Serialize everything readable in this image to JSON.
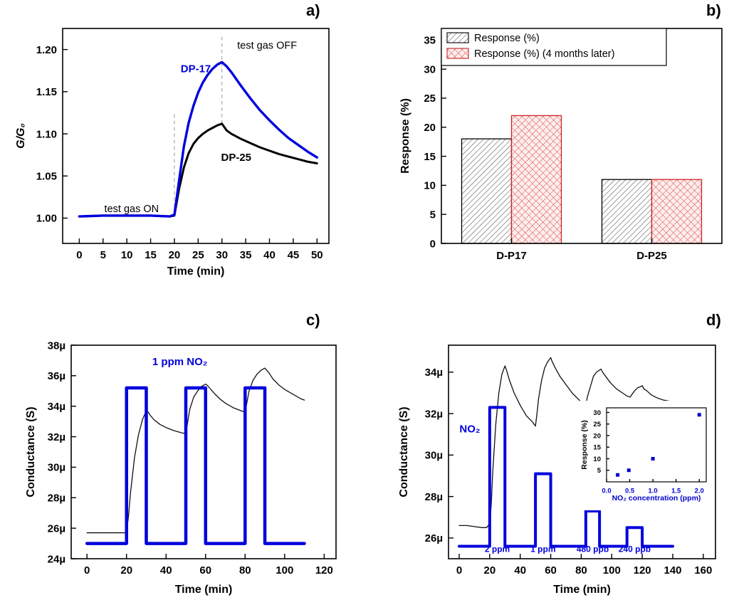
{
  "figure": {
    "background": "#ffffff",
    "panel_labels": {
      "a": "a)",
      "b": "b)",
      "c": "c)",
      "d": "d)"
    }
  },
  "colors": {
    "blue": "#0000dd",
    "black": "#000000",
    "red_edge": "#cc2222"
  },
  "chart_data": [
    {
      "id": "a",
      "type": "line",
      "xlabel": "Time (min)",
      "ylabel": "G/G₀",
      "ylabel_style": "italic",
      "xlim": [
        -3.5,
        52.5
      ],
      "ylim": [
        0.97,
        1.225
      ],
      "xticks": [
        0,
        5,
        10,
        15,
        20,
        25,
        30,
        35,
        40,
        45,
        50
      ],
      "yticks": [
        1.0,
        1.05,
        1.1,
        1.15,
        1.2
      ],
      "ytick_labels": [
        "1.00",
        "1.05",
        "1.10",
        "1.15",
        "1.20"
      ],
      "vlines": [
        {
          "x": 20,
          "y0": 1.005,
          "y1": 1.127
        },
        {
          "x": 30,
          "y0": 1.112,
          "y1": 1.218
        }
      ],
      "series": [
        {
          "name": "DP-25",
          "color": "#000000",
          "width": 3,
          "x": [
            0,
            5,
            10,
            15,
            19,
            20,
            21,
            22,
            23,
            24,
            25,
            26,
            27,
            28,
            29,
            30,
            30.5,
            31,
            32,
            34,
            36,
            38,
            40,
            42,
            44,
            46,
            48,
            50
          ],
          "y": [
            1.002,
            1.003,
            1.003,
            1.003,
            1.002,
            1.003,
            1.035,
            1.06,
            1.077,
            1.088,
            1.095,
            1.1,
            1.104,
            1.107,
            1.11,
            1.112,
            1.108,
            1.104,
            1.1,
            1.094,
            1.089,
            1.084,
            1.08,
            1.076,
            1.073,
            1.07,
            1.067,
            1.065
          ]
        },
        {
          "name": "DP-17",
          "color": "#0000dd",
          "width": 3.4,
          "x": [
            0,
            5,
            10,
            15,
            19,
            20,
            21,
            22,
            23,
            24,
            25,
            26,
            27,
            28,
            29,
            30,
            31,
            32,
            34,
            36,
            38,
            40,
            42,
            44,
            46,
            48,
            50
          ],
          "y": [
            1.002,
            1.003,
            1.003,
            1.003,
            1.002,
            1.004,
            1.045,
            1.085,
            1.113,
            1.133,
            1.149,
            1.161,
            1.17,
            1.177,
            1.182,
            1.185,
            1.18,
            1.173,
            1.157,
            1.142,
            1.128,
            1.116,
            1.105,
            1.095,
            1.087,
            1.079,
            1.072
          ]
        }
      ],
      "annotations": [
        {
          "text": "DP-17",
          "x": 24.5,
          "y": 1.173,
          "color": "#0000dd",
          "bold": true,
          "size": 15
        },
        {
          "text": "DP-25",
          "x": 33,
          "y": 1.068,
          "color": "#000000",
          "bold": true,
          "size": 15
        },
        {
          "text": "test gas ON",
          "x": 11,
          "y": 1.007,
          "color": "#000000",
          "bold": false,
          "size": 14.5
        },
        {
          "text": "test gas OFF",
          "x": 39.5,
          "y": 1.201,
          "color": "#000000",
          "bold": false,
          "size": 14.5
        }
      ]
    },
    {
      "id": "b",
      "type": "bar",
      "ylabel": "Response (%)",
      "categories": [
        "D-P17",
        "D-P25"
      ],
      "ylim": [
        0,
        37
      ],
      "yticks": [
        0,
        5,
        10,
        15,
        20,
        25,
        30,
        35
      ],
      "legend_show": true,
      "legend_position": "top-left",
      "series": [
        {
          "name": "Response (%)",
          "values": [
            18,
            11
          ],
          "fill": "hatch-gray",
          "edge": "#000000"
        },
        {
          "name": "Response (%) (4 months later)",
          "values": [
            22,
            11
          ],
          "fill": "hatch-red",
          "edge": "#cc2222"
        }
      ]
    },
    {
      "id": "c",
      "type": "line",
      "xlabel": "Time (min)",
      "ylabel": "Conductance (S)",
      "xlim": [
        -8,
        126
      ],
      "ylim": [
        24,
        38
      ],
      "xticks": [
        0,
        20,
        40,
        60,
        80,
        100,
        120
      ],
      "yticks": [
        24,
        26,
        28,
        30,
        32,
        34,
        36,
        38
      ],
      "ytick_labels": [
        "24µ",
        "26µ",
        "28µ",
        "30µ",
        "32µ",
        "34µ",
        "36µ",
        "38µ"
      ],
      "series": [
        {
          "name": "conductance",
          "color": "#111111",
          "width": 1.3,
          "x": [
            0,
            5,
            10,
            15,
            20,
            21,
            22,
            24,
            26,
            28,
            30,
            31,
            32,
            34,
            37,
            40,
            44,
            48,
            50,
            51,
            52,
            54,
            56,
            58,
            60,
            61,
            62,
            64,
            67,
            70,
            74,
            78,
            80,
            81,
            82,
            84,
            86,
            88,
            90,
            91,
            92,
            94,
            97,
            100,
            104,
            108,
            110
          ],
          "y": [
            25.7,
            25.7,
            25.7,
            25.7,
            25.7,
            26.8,
            28.3,
            30.6,
            32.1,
            33.1,
            33.7,
            33.6,
            33.4,
            33.1,
            32.8,
            32.6,
            32.4,
            32.25,
            32.2,
            33.0,
            33.8,
            34.6,
            35.0,
            35.3,
            35.45,
            35.35,
            35.2,
            34.9,
            34.5,
            34.2,
            33.9,
            33.7,
            33.6,
            34.3,
            35.0,
            35.7,
            36.1,
            36.35,
            36.5,
            36.35,
            36.2,
            35.8,
            35.4,
            35.1,
            34.8,
            34.5,
            34.4
          ]
        },
        {
          "name": "gas-pulse-1ppm",
          "color": "#0000dd",
          "width": 4.5,
          "x": [
            0,
            20,
            20,
            30,
            30,
            50,
            50,
            60,
            60,
            80,
            80,
            90,
            90,
            110
          ],
          "y": [
            25,
            25,
            35.2,
            35.2,
            25,
            25,
            35.2,
            35.2,
            25,
            25,
            35.2,
            35.2,
            25,
            25
          ]
        }
      ],
      "annotations": [
        {
          "text": "1 ppm NO₂",
          "x": 47,
          "y": 36.7,
          "color": "#0000dd",
          "bold": true,
          "size": 15
        }
      ]
    },
    {
      "id": "d",
      "type": "line",
      "xlabel": "Time (min)",
      "ylabel": "Conductance (S)",
      "xlim": [
        -7,
        168
      ],
      "ylim": [
        25,
        35.3
      ],
      "xticks": [
        0,
        20,
        40,
        60,
        80,
        100,
        120,
        140,
        160
      ],
      "yticks": [
        26,
        28,
        30,
        32,
        34
      ],
      "ytick_labels": [
        "26µ",
        "28µ",
        "30µ",
        "32µ",
        "34µ"
      ],
      "series": [
        {
          "name": "conductance",
          "color": "#111111",
          "width": 1.3,
          "x": [
            0,
            5,
            10,
            15,
            18,
            20,
            21,
            22,
            24,
            26,
            28,
            30,
            31,
            33,
            36,
            40,
            44,
            48,
            50,
            51,
            52,
            54,
            56,
            58,
            60,
            61,
            63,
            66,
            70,
            74,
            78,
            81,
            83,
            84,
            86,
            88,
            90,
            92,
            93,
            94,
            96,
            99,
            103,
            107,
            110,
            112,
            113,
            115,
            117,
            119,
            120,
            121,
            123,
            126,
            130,
            134,
            138,
            140
          ],
          "y": [
            26.6,
            26.6,
            26.55,
            26.5,
            26.5,
            26.7,
            27.6,
            29.2,
            31.5,
            33.0,
            33.9,
            34.3,
            34.1,
            33.6,
            33.0,
            32.4,
            31.9,
            31.6,
            31.4,
            32.0,
            32.7,
            33.6,
            34.2,
            34.5,
            34.7,
            34.5,
            34.2,
            33.8,
            33.4,
            33.0,
            32.7,
            32.5,
            32.4,
            32.8,
            33.3,
            33.8,
            34.0,
            34.1,
            34.15,
            34.0,
            33.8,
            33.5,
            33.2,
            33.0,
            32.85,
            32.8,
            32.9,
            33.1,
            33.25,
            33.3,
            33.35,
            33.2,
            33.1,
            32.9,
            32.75,
            32.65,
            32.6,
            32.55
          ]
        },
        {
          "name": "gas-pulse-steps",
          "color": "#0000dd",
          "width": 4,
          "x": [
            0,
            20,
            20,
            30,
            30,
            50,
            50,
            60,
            60,
            83,
            83,
            92,
            92,
            110,
            110,
            120,
            120,
            140
          ],
          "y": [
            25.6,
            25.6,
            32.3,
            32.3,
            25.6,
            25.6,
            29.1,
            29.1,
            25.6,
            25.6,
            27.3,
            27.3,
            25.6,
            25.6,
            26.5,
            26.5,
            25.6,
            25.6
          ]
        }
      ],
      "annotations": [
        {
          "text": "NO₂",
          "x": 7,
          "y": 31.1,
          "color": "#0000dd",
          "bold": true,
          "size": 15
        },
        {
          "text": "2 ppm",
          "x": 25,
          "y": 25.32,
          "color": "#0000dd",
          "bold": true,
          "size": 12
        },
        {
          "text": "1 ppm",
          "x": 55,
          "y": 25.32,
          "color": "#0000dd",
          "bold": true,
          "size": 12
        },
        {
          "text": "480 ppb",
          "x": 87.5,
          "y": 25.32,
          "color": "#0000dd",
          "bold": true,
          "size": 12
        },
        {
          "text": "240 ppb",
          "x": 115,
          "y": 25.32,
          "color": "#0000dd",
          "bold": true,
          "size": 12
        }
      ],
      "inset": {
        "type": "scatter",
        "xlabel": "NO₂ concentration (ppm)",
        "xlabel_color": "#0000cc",
        "ylabel": "Response (%)",
        "ylabel_color": "#000000",
        "xlim": [
          0,
          2.15
        ],
        "ylim": [
          0,
          32
        ],
        "xticks": [
          0,
          0.5,
          1,
          1.5,
          2
        ],
        "xtick_labels": [
          "0.0",
          "0.5",
          "1.0",
          "1.5",
          "2.0"
        ],
        "xtick_color": "#0000cc",
        "yticks": [
          5,
          10,
          15,
          20,
          25,
          30
        ],
        "points": {
          "x": [
            0.24,
            0.48,
            1,
            2
          ],
          "y": [
            3,
            5,
            10,
            29
          ]
        },
        "color": "#0000cc"
      }
    }
  ]
}
